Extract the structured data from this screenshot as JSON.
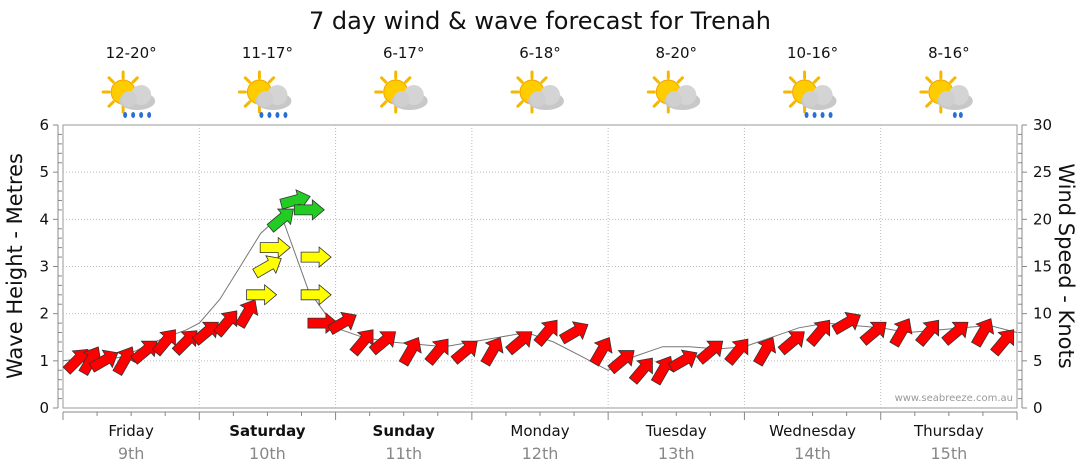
{
  "chart_data": {
    "type": "line",
    "title": "7 day wind & wave forecast for Trenah",
    "ylabel_left": "Wave Height - Metres",
    "ylabel_right": "Wind Speed - Knots",
    "ylim_left": [
      0,
      6
    ],
    "ylim_right": [
      0,
      30
    ],
    "yticks_left": [
      "0",
      "1",
      "2",
      "3",
      "4",
      "5",
      "6"
    ],
    "yticks_right": [
      "0",
      "5",
      "10",
      "15",
      "20",
      "25",
      "30"
    ],
    "grid": true,
    "days": [
      {
        "name": "Friday",
        "date": "9th",
        "temps": "12-20°",
        "weather": "sun-cloud-rain-icon",
        "bold": false
      },
      {
        "name": "Saturday",
        "date": "10th",
        "temps": "11-17°",
        "weather": "sun-cloud-showers-icon",
        "bold": true
      },
      {
        "name": "Sunday",
        "date": "11th",
        "temps": "6-17°",
        "weather": "sun-cloud-icon",
        "bold": true
      },
      {
        "name": "Monday",
        "date": "12th",
        "temps": "6-18°",
        "weather": "sun-cloud-icon",
        "bold": false
      },
      {
        "name": "Tuesday",
        "date": "13th",
        "temps": "8-20°",
        "weather": "sun-cloud-icon",
        "bold": false
      },
      {
        "name": "Wednesday",
        "date": "14th",
        "temps": "10-16°",
        "weather": "sun-cloud-showers-icon",
        "bold": false
      },
      {
        "name": "Thursday",
        "date": "15th",
        "temps": "8-16°",
        "weather": "sun-cloud-drizzle-icon",
        "bold": false
      }
    ],
    "wave_series": {
      "name": "Wave height (m)",
      "days": [
        0,
        0.15,
        0.3,
        0.45,
        0.6,
        0.75,
        0.9,
        1.0,
        1.15,
        1.3,
        1.45,
        1.6,
        1.8,
        2.0,
        2.2,
        2.4,
        2.6,
        2.8,
        3.0,
        3.2,
        3.4,
        3.6,
        3.8,
        4.0,
        4.2,
        4.4,
        4.6,
        4.8,
        5.0,
        5.2,
        5.4,
        5.6,
        5.8,
        6.0,
        6.2,
        6.4,
        6.6,
        6.8,
        7.0
      ],
      "values": [
        1.0,
        1.05,
        1.0,
        1.1,
        1.3,
        1.5,
        1.65,
        1.8,
        2.3,
        3.0,
        3.7,
        4.1,
        2.5,
        1.7,
        1.5,
        1.4,
        1.35,
        1.3,
        1.4,
        1.5,
        1.6,
        1.4,
        1.1,
        0.8,
        1.1,
        1.3,
        1.3,
        1.25,
        1.3,
        1.5,
        1.7,
        1.8,
        1.75,
        1.7,
        1.6,
        1.65,
        1.7,
        1.75,
        1.6
      ]
    },
    "wind_arrows": {
      "unit": "knots",
      "color_scale": {
        "light": "#ff0000",
        "moderate": "#ffff00",
        "strong": "#22cc22"
      },
      "points": [
        {
          "day": 0.1,
          "speed": 5,
          "dir": 315
        },
        {
          "day": 0.2,
          "speed": 5,
          "dir": 300
        },
        {
          "day": 0.3,
          "speed": 5,
          "dir": 330
        },
        {
          "day": 0.45,
          "speed": 5,
          "dir": 300
        },
        {
          "day": 0.6,
          "speed": 6,
          "dir": 320
        },
        {
          "day": 0.75,
          "speed": 7,
          "dir": 310
        },
        {
          "day": 0.9,
          "speed": 7,
          "dir": 315
        },
        {
          "day": 1.05,
          "speed": 8,
          "dir": 320
        },
        {
          "day": 1.2,
          "speed": 9,
          "dir": 310
        },
        {
          "day": 1.35,
          "speed": 10,
          "dir": 300
        },
        {
          "day": 1.45,
          "speed": 12,
          "dir": 0
        },
        {
          "day": 1.5,
          "speed": 15,
          "dir": 330
        },
        {
          "day": 1.55,
          "speed": 17,
          "dir": 0
        },
        {
          "day": 1.6,
          "speed": 20,
          "dir": 320
        },
        {
          "day": 1.7,
          "speed": 22,
          "dir": 345
        },
        {
          "day": 1.8,
          "speed": 21,
          "dir": 0
        },
        {
          "day": 1.85,
          "speed": 16,
          "dir": 0
        },
        {
          "day": 1.85,
          "speed": 12,
          "dir": 0
        },
        {
          "day": 1.9,
          "speed": 9,
          "dir": 0
        },
        {
          "day": 2.05,
          "speed": 9,
          "dir": 330
        },
        {
          "day": 2.2,
          "speed": 7,
          "dir": 310
        },
        {
          "day": 2.35,
          "speed": 7,
          "dir": 320
        },
        {
          "day": 2.55,
          "speed": 6,
          "dir": 300
        },
        {
          "day": 2.75,
          "speed": 6,
          "dir": 310
        },
        {
          "day": 2.95,
          "speed": 6,
          "dir": 320
        },
        {
          "day": 3.15,
          "speed": 6,
          "dir": 300
        },
        {
          "day": 3.35,
          "speed": 7,
          "dir": 320
        },
        {
          "day": 3.55,
          "speed": 8,
          "dir": 310
        },
        {
          "day": 3.75,
          "speed": 8,
          "dir": 330
        },
        {
          "day": 3.95,
          "speed": 6,
          "dir": 300
        },
        {
          "day": 4.1,
          "speed": 5,
          "dir": 320
        },
        {
          "day": 4.25,
          "speed": 4,
          "dir": 310
        },
        {
          "day": 4.4,
          "speed": 4,
          "dir": 300
        },
        {
          "day": 4.55,
          "speed": 5,
          "dir": 330
        },
        {
          "day": 4.75,
          "speed": 6,
          "dir": 320
        },
        {
          "day": 4.95,
          "speed": 6,
          "dir": 310
        },
        {
          "day": 5.15,
          "speed": 6,
          "dir": 300
        },
        {
          "day": 5.35,
          "speed": 7,
          "dir": 320
        },
        {
          "day": 5.55,
          "speed": 8,
          "dir": 310
        },
        {
          "day": 5.75,
          "speed": 9,
          "dir": 330
        },
        {
          "day": 5.95,
          "speed": 8,
          "dir": 320
        },
        {
          "day": 6.15,
          "speed": 8,
          "dir": 300
        },
        {
          "day": 6.35,
          "speed": 8,
          "dir": 310
        },
        {
          "day": 6.55,
          "speed": 8,
          "dir": 320
        },
        {
          "day": 6.75,
          "speed": 8,
          "dir": 300
        },
        {
          "day": 6.9,
          "speed": 7,
          "dir": 310
        }
      ]
    },
    "credit": "www.seabreeze.com.au"
  }
}
